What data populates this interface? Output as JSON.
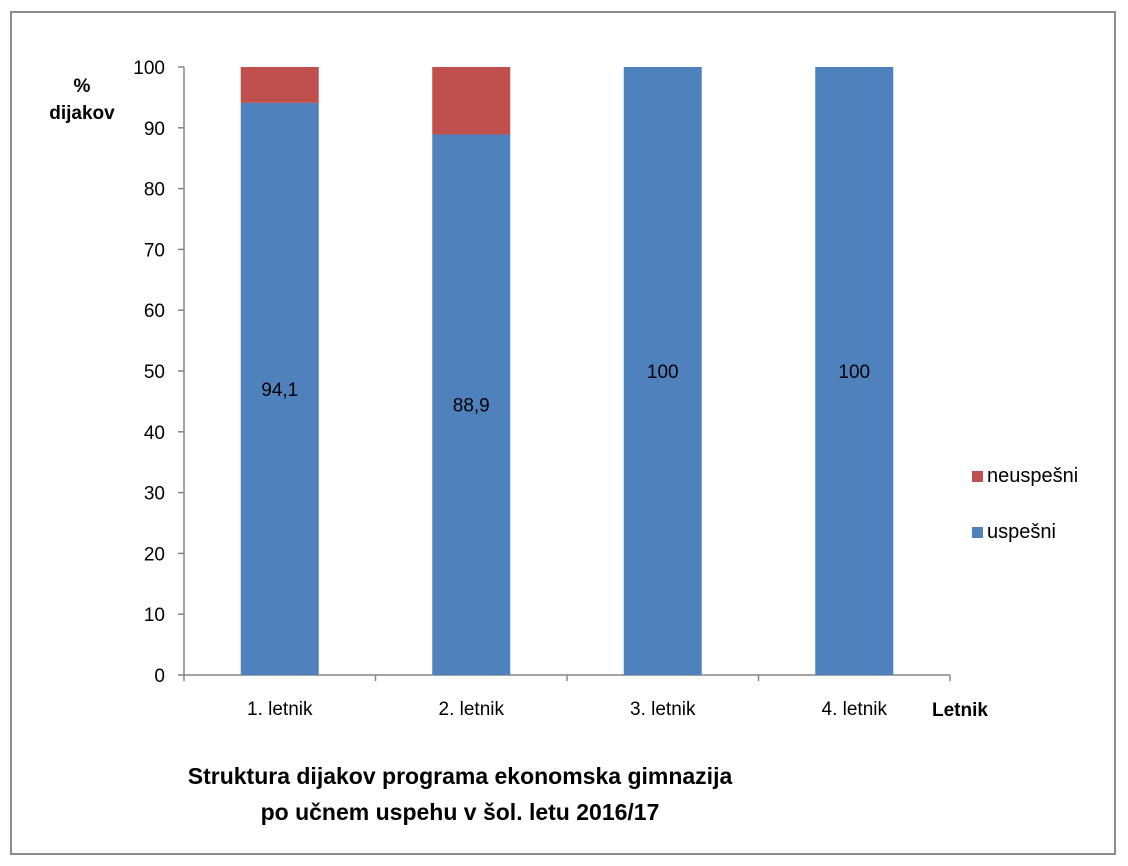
{
  "chart_data": {
    "type": "bar",
    "stacked": true,
    "title_line1": "Struktura dijakov programa ekonomska gimnazija",
    "title_line2": "po učnem uspehu v šol. letu 2016/17",
    "ylabel_line1": "%",
    "ylabel_line2": "dijakov",
    "xlabel": "Letnik",
    "categories": [
      "1. letnik",
      "2. letnik",
      "3. letnik",
      "4. letnik"
    ],
    "ylim": [
      0,
      100
    ],
    "yticks": [
      0,
      10,
      20,
      30,
      40,
      50,
      60,
      70,
      80,
      90,
      100
    ],
    "series": [
      {
        "name": "uspešni",
        "values": [
          94.1,
          88.9,
          100,
          100
        ],
        "labels": [
          "94,1",
          "88,9",
          "100",
          "100"
        ],
        "color": "#4F81BD"
      },
      {
        "name": "neuspešni",
        "values": [
          5.9,
          11.1,
          0,
          0
        ],
        "color": "#C0504D"
      }
    ],
    "legend": [
      {
        "name": "neuspešni",
        "color": "#C0504D"
      },
      {
        "name": "uspešni",
        "color": "#4F81BD"
      }
    ],
    "legend_position": "right",
    "grid": false
  }
}
